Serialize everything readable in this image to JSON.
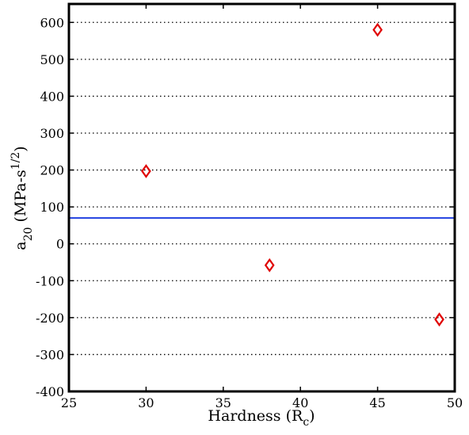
{
  "chart_data": {
    "type": "scatter",
    "x": [
      30,
      38,
      45,
      49
    ],
    "series": [
      {
        "color": "#e00000",
        "values": [
          197,
          -58,
          580,
          -205
        ]
      }
    ],
    "hline": {
      "value": 70,
      "color": "#2040e0"
    },
    "xlim": [
      25,
      50
    ],
    "xticks": [
      25,
      30,
      35,
      40,
      45,
      50
    ],
    "ylim": [
      -400,
      650
    ],
    "yticks": [
      -400,
      -300,
      -200,
      -100,
      0,
      100,
      200,
      300,
      400,
      500,
      600
    ],
    "grid": "y",
    "xlabel": {
      "text": "Hardness (R",
      "sub": "c",
      "end": ")"
    },
    "ylabel": {
      "text": "a",
      "sub": "20",
      "mid": " (MPa-s",
      "sup": "1/2",
      "end": ")"
    }
  }
}
